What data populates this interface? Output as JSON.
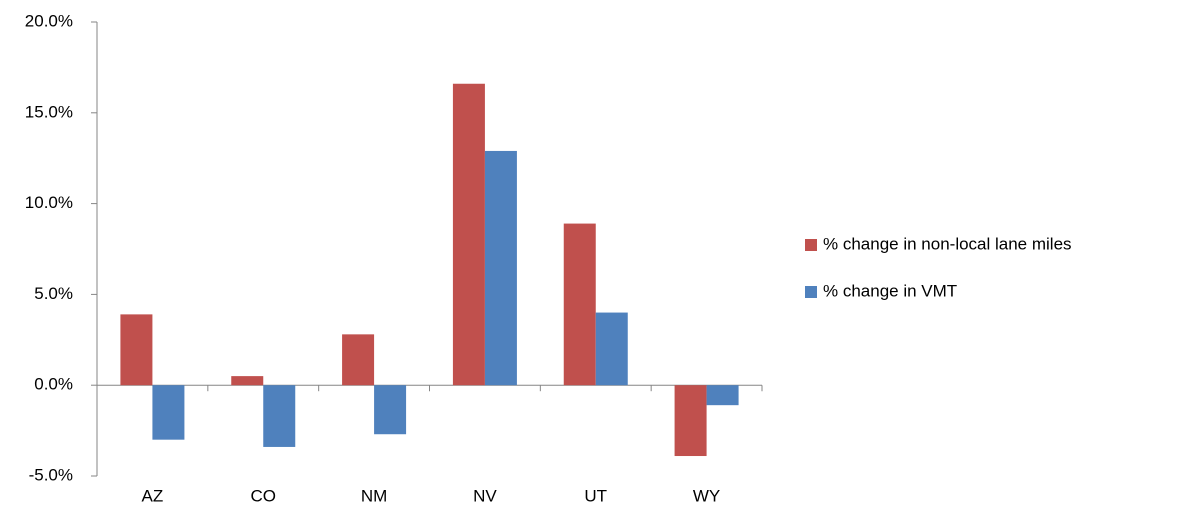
{
  "chart_data": {
    "type": "bar",
    "categories": [
      "AZ",
      "CO",
      "NM",
      "NV",
      "UT",
      "WY"
    ],
    "series": [
      {
        "name": "% change in non-local lane miles",
        "color": "#c0504d",
        "values": [
          3.9,
          0.5,
          2.8,
          16.6,
          8.9,
          -3.9
        ]
      },
      {
        "name": "% change in VMT",
        "color": "#4f81bd",
        "values": [
          -3.0,
          -3.4,
          -2.7,
          12.9,
          4.0,
          -1.1
        ]
      }
    ],
    "ylim": [
      -5,
      20
    ],
    "yticks": [
      {
        "value": -5,
        "label": "-5.0%"
      },
      {
        "value": 0,
        "label": "0.0%"
      },
      {
        "value": 5,
        "label": "5.0%"
      },
      {
        "value": 10,
        "label": "10.0%"
      },
      {
        "value": 15,
        "label": "15.0%"
      },
      {
        "value": 20,
        "label": "20.0%"
      }
    ],
    "grid": false,
    "legend": "right"
  }
}
